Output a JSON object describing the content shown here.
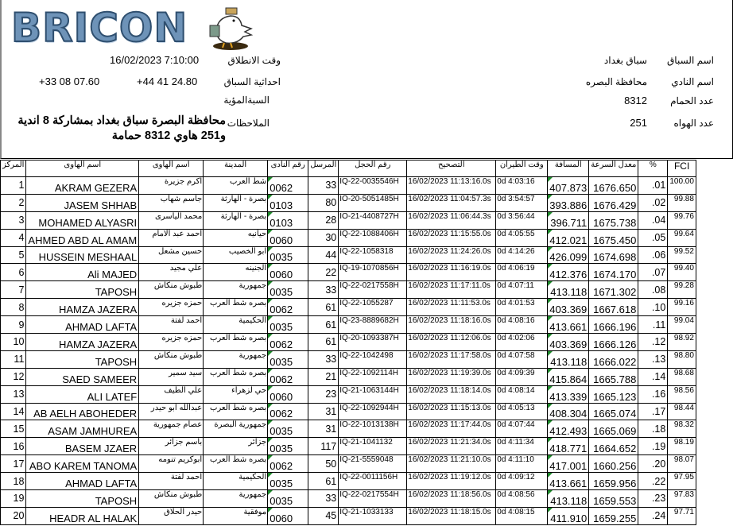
{
  "logo": {
    "text": "BRICON",
    "icon": "pigeon-mascot-icon"
  },
  "race_info": {
    "race_name_label": "اسم السباق",
    "race_name": "سباق بغداد",
    "club_name_label": "اسم النادي",
    "club_name": "محافظة البصره",
    "pigeon_count_label": "عدد الحمام",
    "pigeon_count": "8312",
    "fancier_count_label": "عدد الهواه",
    "fancier_count": "251",
    "start_time_label": "وقت الانطلاق",
    "start_time": "16/02/2023 7:10:00",
    "coords_label": "احداثية السباق",
    "coord_lat": "+44 41 24.80",
    "coord_lon": "+33 08 07.60",
    "percentage_label": "السبةالمؤية",
    "remarks_label": "الملاحظات",
    "remarks_line1": "محافظة البصرة سباق بغداد بمشاركة 8 اندية",
    "remarks_line2": "و251 هاوي 8312 حمامة"
  },
  "columns": [
    "المركز",
    "اسم الهاوى",
    "اسم الهاوى",
    "المدينة",
    "رقم النادى",
    "المرسل",
    "رقم الحجل",
    "التصحيح",
    "وقت الطيران",
    "المسافة",
    "معدل السرعة",
    "%",
    "FCI"
  ],
  "rows": [
    [
      "1",
      "AKRAM GEZERA",
      "اكرم جزيرة",
      "شط العرب",
      "0062",
      "33",
      "IQ-22-0035546H",
      "16/02/2023 11:13:16.0s",
      "0d 4:03:16",
      "407.873",
      "1676.650",
      ".01",
      "100.00"
    ],
    [
      "2",
      "JASEM SHHAB",
      "جاسم شهاب",
      "بصرة - الهارثة",
      "0103",
      "80",
      "IO-20-5051485H",
      "16/02/2023 11:04:57.3s",
      "0d 3:54:57",
      "393.886",
      "1676.429",
      ".02",
      "99.88"
    ],
    [
      "3",
      "MOHAMED ALYASRI",
      "محمد الياسرى",
      "بصرة - الهارثة",
      "0103",
      "28",
      "IO-21-4408727H",
      "16/02/2023 11:06:44.3s",
      "0d 3:56:44",
      "396.711",
      "1675.738",
      ".04",
      "99.76"
    ],
    [
      "4",
      "AHMED ABD AL AMAM",
      "احمد عبد الامام",
      "حيانيه",
      "0060",
      "30",
      "IQ-22-1088406H",
      "16/02/2023 11:15:55.0s",
      "0d 4:05:55",
      "412.021",
      "1675.450",
      ".05",
      "99.64"
    ],
    [
      "5",
      "HUSSEIN MESHAAL",
      "حسين مشعل",
      "ابو الخصيب",
      "0035",
      "44",
      "IQ-22-1058318",
      "16/02/2023 11:24:26.0s",
      "0d 4:14:26",
      "426.099",
      "1674.698",
      ".06",
      "99.52"
    ],
    [
      "6",
      "Ali MAJED",
      "علي مجيد",
      "الجنينه",
      "0060",
      "22",
      "IQ-19-1070856H",
      "16/02/2023 11:16:19.0s",
      "0d 4:06:19",
      "412.376",
      "1674.170",
      ".07",
      "99.40"
    ],
    [
      "7",
      "TAPOSH",
      "طبوش منكاش",
      "جمهورية",
      "0035",
      "33",
      "IQ-22-0217558H",
      "16/02/2023 11:17:11.0s",
      "0d 4:07:11",
      "413.118",
      "1671.302",
      ".08",
      "99.28"
    ],
    [
      "8",
      "HAMZA JAZERA",
      "حمزه جزيره",
      "بصره شط العرب",
      "0062",
      "61",
      "IQ-22-1055287",
      "16/02/2023 11:11:53.0s",
      "0d 4:01:53",
      "403.369",
      "1667.618",
      ".10",
      "99.16"
    ],
    [
      "9",
      "AHMAD LAFTA",
      "احمد لفتة",
      "الحكيمية",
      "0035",
      "61",
      "IQ-23-8889682H",
      "16/02/2023 11:18:16.0s",
      "0d 4:08:16",
      "413.661",
      "1666.196",
      ".11",
      "99.04"
    ],
    [
      "10",
      "HAMZA JAZERA",
      "حمزه جزيره",
      "بصره شط العرب",
      "0062",
      "61",
      "IQ-20-1093387H",
      "16/02/2023 11:12:06.0s",
      "0d 4:02:06",
      "403.369",
      "1666.126",
      ".12",
      "98.92"
    ],
    [
      "11",
      "TAPOSH",
      "طبوش منكاش",
      "جمهورية",
      "0035",
      "33",
      "IQ-22-1042498",
      "16/02/2023 11:17:58.0s",
      "0d 4:07:58",
      "413.118",
      "1666.022",
      ".13",
      "98.80"
    ],
    [
      "12",
      "SAED SAMEER",
      "سيد سمير",
      "بصره شط العرب",
      "0062",
      "21",
      "IQ-22-1092114H",
      "16/02/2023 11:19:39.0s",
      "0d 4:09:39",
      "415.864",
      "1665.788",
      ".14",
      "98.68"
    ],
    [
      "13",
      "ALI LATEF",
      "علي الطيف",
      "حي لزهراء",
      "0060",
      "23",
      "IQ-21-1063144H",
      "16/02/2023 11:18:14.0s",
      "0d 4:08:14",
      "413.339",
      "1665.123",
      ".16",
      "98.56"
    ],
    [
      "14",
      "AB AELH ABOHEDER",
      "عبدالله ابو حيدر",
      "بصره شط العرب",
      "0062",
      "31",
      "IQ-22-1092944H",
      "16/02/2023 11:15:13.0s",
      "0d 4:05:13",
      "408.304",
      "1665.074",
      ".17",
      "98.44"
    ],
    [
      "15",
      "ASAM JAMHUREA",
      "عصام جمهورية",
      "جمهورية البصرة",
      "0035",
      "31",
      "IO-22-1013138H",
      "16/02/2023 11:17:44.0s",
      "0d 4:07:44",
      "412.493",
      "1665.069",
      ".18",
      "98.32"
    ],
    [
      "16",
      "BASEM JZAER",
      "باسم جزائر",
      "جزائر",
      "0035",
      "117",
      "IQ-21-1041132",
      "16/02/2023 11:21:34.0s",
      "0d 4:11:34",
      "418.771",
      "1664.652",
      ".19",
      "98.19"
    ],
    [
      "17",
      "ABO KAREM TANOMA",
      "ابوكريم تنومه",
      "بصره شط العرب",
      "0062",
      "50",
      "IQ-21-5559048",
      "16/02/2023 11:21:10.0s",
      "0d 4:11:10",
      "417.001",
      "1660.256",
      ".20",
      "98.07"
    ],
    [
      "18",
      "AHMAD LAFTA",
      "احمد لفتة",
      "الحكيمية",
      "0035",
      "61",
      "IQ-22-0011156H",
      "16/02/2023 11:19:12.0s",
      "0d 4:09:12",
      "413.661",
      "1659.956",
      ".22",
      "97.95"
    ],
    [
      "19",
      "TAPOSH",
      "طبوش منكاش",
      "جمهورية",
      "0035",
      "33",
      "IQ-22-0217554H",
      "16/02/2023 11:18:56.0s",
      "0d 4:08:56",
      "413.118",
      "1659.553",
      ".23",
      "97.83"
    ],
    [
      "20",
      "HEADR AL HALAK",
      "حيدر الحلاق",
      "موفقية",
      "0060",
      "45",
      "IQ-21-1033133",
      "16/02/2023 11:18:15.0s",
      "0d 4:08:15",
      "411.910",
      "1659.255",
      ".24",
      "97.71"
    ]
  ],
  "colors": {
    "marker": "#1d8a2a",
    "logo": "#6e93b8"
  }
}
